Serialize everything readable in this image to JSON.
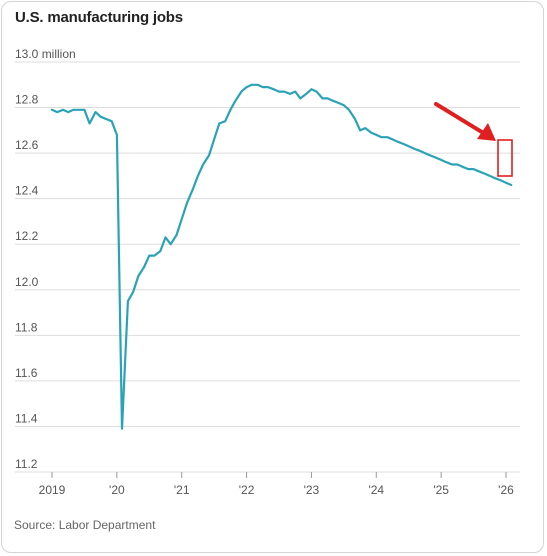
{
  "colors": {
    "line": "#2aa3b8",
    "grid": "#dddddd",
    "annotation": "#e02020",
    "axis": "#999999"
  },
  "chart_data": {
    "type": "line",
    "title": "U.S. manufacturing jobs",
    "source": "Source: Labor Department",
    "unit_label": "13.0 million",
    "ylim": [
      11.2,
      13.0
    ],
    "y_ticks": [
      {
        "value": 13.0,
        "label": "13.0 million"
      },
      {
        "value": 12.8,
        "label": "12.8"
      },
      {
        "value": 12.6,
        "label": "12.6"
      },
      {
        "value": 12.4,
        "label": "12.4"
      },
      {
        "value": 12.2,
        "label": "12.2"
      },
      {
        "value": 12.0,
        "label": "12.0"
      },
      {
        "value": 11.8,
        "label": "11.8"
      },
      {
        "value": 11.6,
        "label": "11.6"
      },
      {
        "value": 11.4,
        "label": "11.4"
      },
      {
        "value": 11.2,
        "label": "11.2"
      }
    ],
    "x_ticks": [
      {
        "value": 2019,
        "label": "2019"
      },
      {
        "value": 2020,
        "label": "'20"
      },
      {
        "value": 2021,
        "label": "'21"
      },
      {
        "value": 2022,
        "label": "'22"
      },
      {
        "value": 2023,
        "label": "'23"
      },
      {
        "value": 2024,
        "label": "'24"
      },
      {
        "value": 2025,
        "label": "'25"
      },
      {
        "value": 2026,
        "label": "'26"
      }
    ],
    "xlim": [
      2019,
      2026.1
    ],
    "grid": true,
    "series": [
      {
        "x": [
          2019.0,
          2019.08,
          2019.17,
          2019.25,
          2019.33,
          2019.42,
          2019.5,
          2019.58,
          2019.67,
          2019.75,
          2019.83,
          2019.92,
          2020.0,
          2020.08,
          2020.17,
          2020.25,
          2020.33,
          2020.42,
          2020.5,
          2020.58,
          2020.67,
          2020.75,
          2020.83,
          2020.92,
          2021.0,
          2021.08,
          2021.17,
          2021.25,
          2021.33,
          2021.42,
          2021.5,
          2021.58,
          2021.67,
          2021.75,
          2021.83,
          2021.92,
          2022.0,
          2022.08,
          2022.17,
          2022.25,
          2022.33,
          2022.42,
          2022.5,
          2022.58,
          2022.67,
          2022.75,
          2022.83,
          2022.92,
          2023.0,
          2023.08,
          2023.17,
          2023.25,
          2023.33,
          2023.42,
          2023.5,
          2023.58,
          2023.67,
          2023.75,
          2023.83,
          2023.92,
          2024.0,
          2024.08,
          2024.17,
          2024.25,
          2024.33,
          2024.42,
          2024.5,
          2024.58,
          2024.67,
          2024.75,
          2024.83,
          2024.92,
          2025.0,
          2025.08,
          2025.17,
          2025.25,
          2025.33,
          2025.42,
          2025.5,
          2025.58,
          2025.67,
          2025.75,
          2025.83,
          2025.92,
          2026.0,
          2026.08
        ],
        "values": [
          12.79,
          12.78,
          12.79,
          12.78,
          12.79,
          12.79,
          12.79,
          12.73,
          12.78,
          12.76,
          12.75,
          12.74,
          12.68,
          11.39,
          11.95,
          11.99,
          12.06,
          12.1,
          12.15,
          12.15,
          12.17,
          12.23,
          12.2,
          12.24,
          12.31,
          12.38,
          12.44,
          12.5,
          12.55,
          12.59,
          12.66,
          12.73,
          12.74,
          12.79,
          12.83,
          12.87,
          12.89,
          12.9,
          12.9,
          12.89,
          12.89,
          12.88,
          12.87,
          12.87,
          12.86,
          12.87,
          12.84,
          12.86,
          12.88,
          12.87,
          12.84,
          12.84,
          12.83,
          12.82,
          12.81,
          12.79,
          12.75,
          12.7,
          12.71,
          12.69,
          12.68,
          12.67,
          12.67,
          12.66,
          12.65,
          12.64,
          12.63,
          12.62,
          12.61,
          12.6,
          12.59,
          12.58,
          12.57,
          12.56,
          12.55,
          12.55,
          12.54,
          12.53,
          12.53,
          12.52,
          12.51,
          12.5,
          12.49,
          12.48,
          12.47,
          12.46
        ]
      }
    ]
  }
}
